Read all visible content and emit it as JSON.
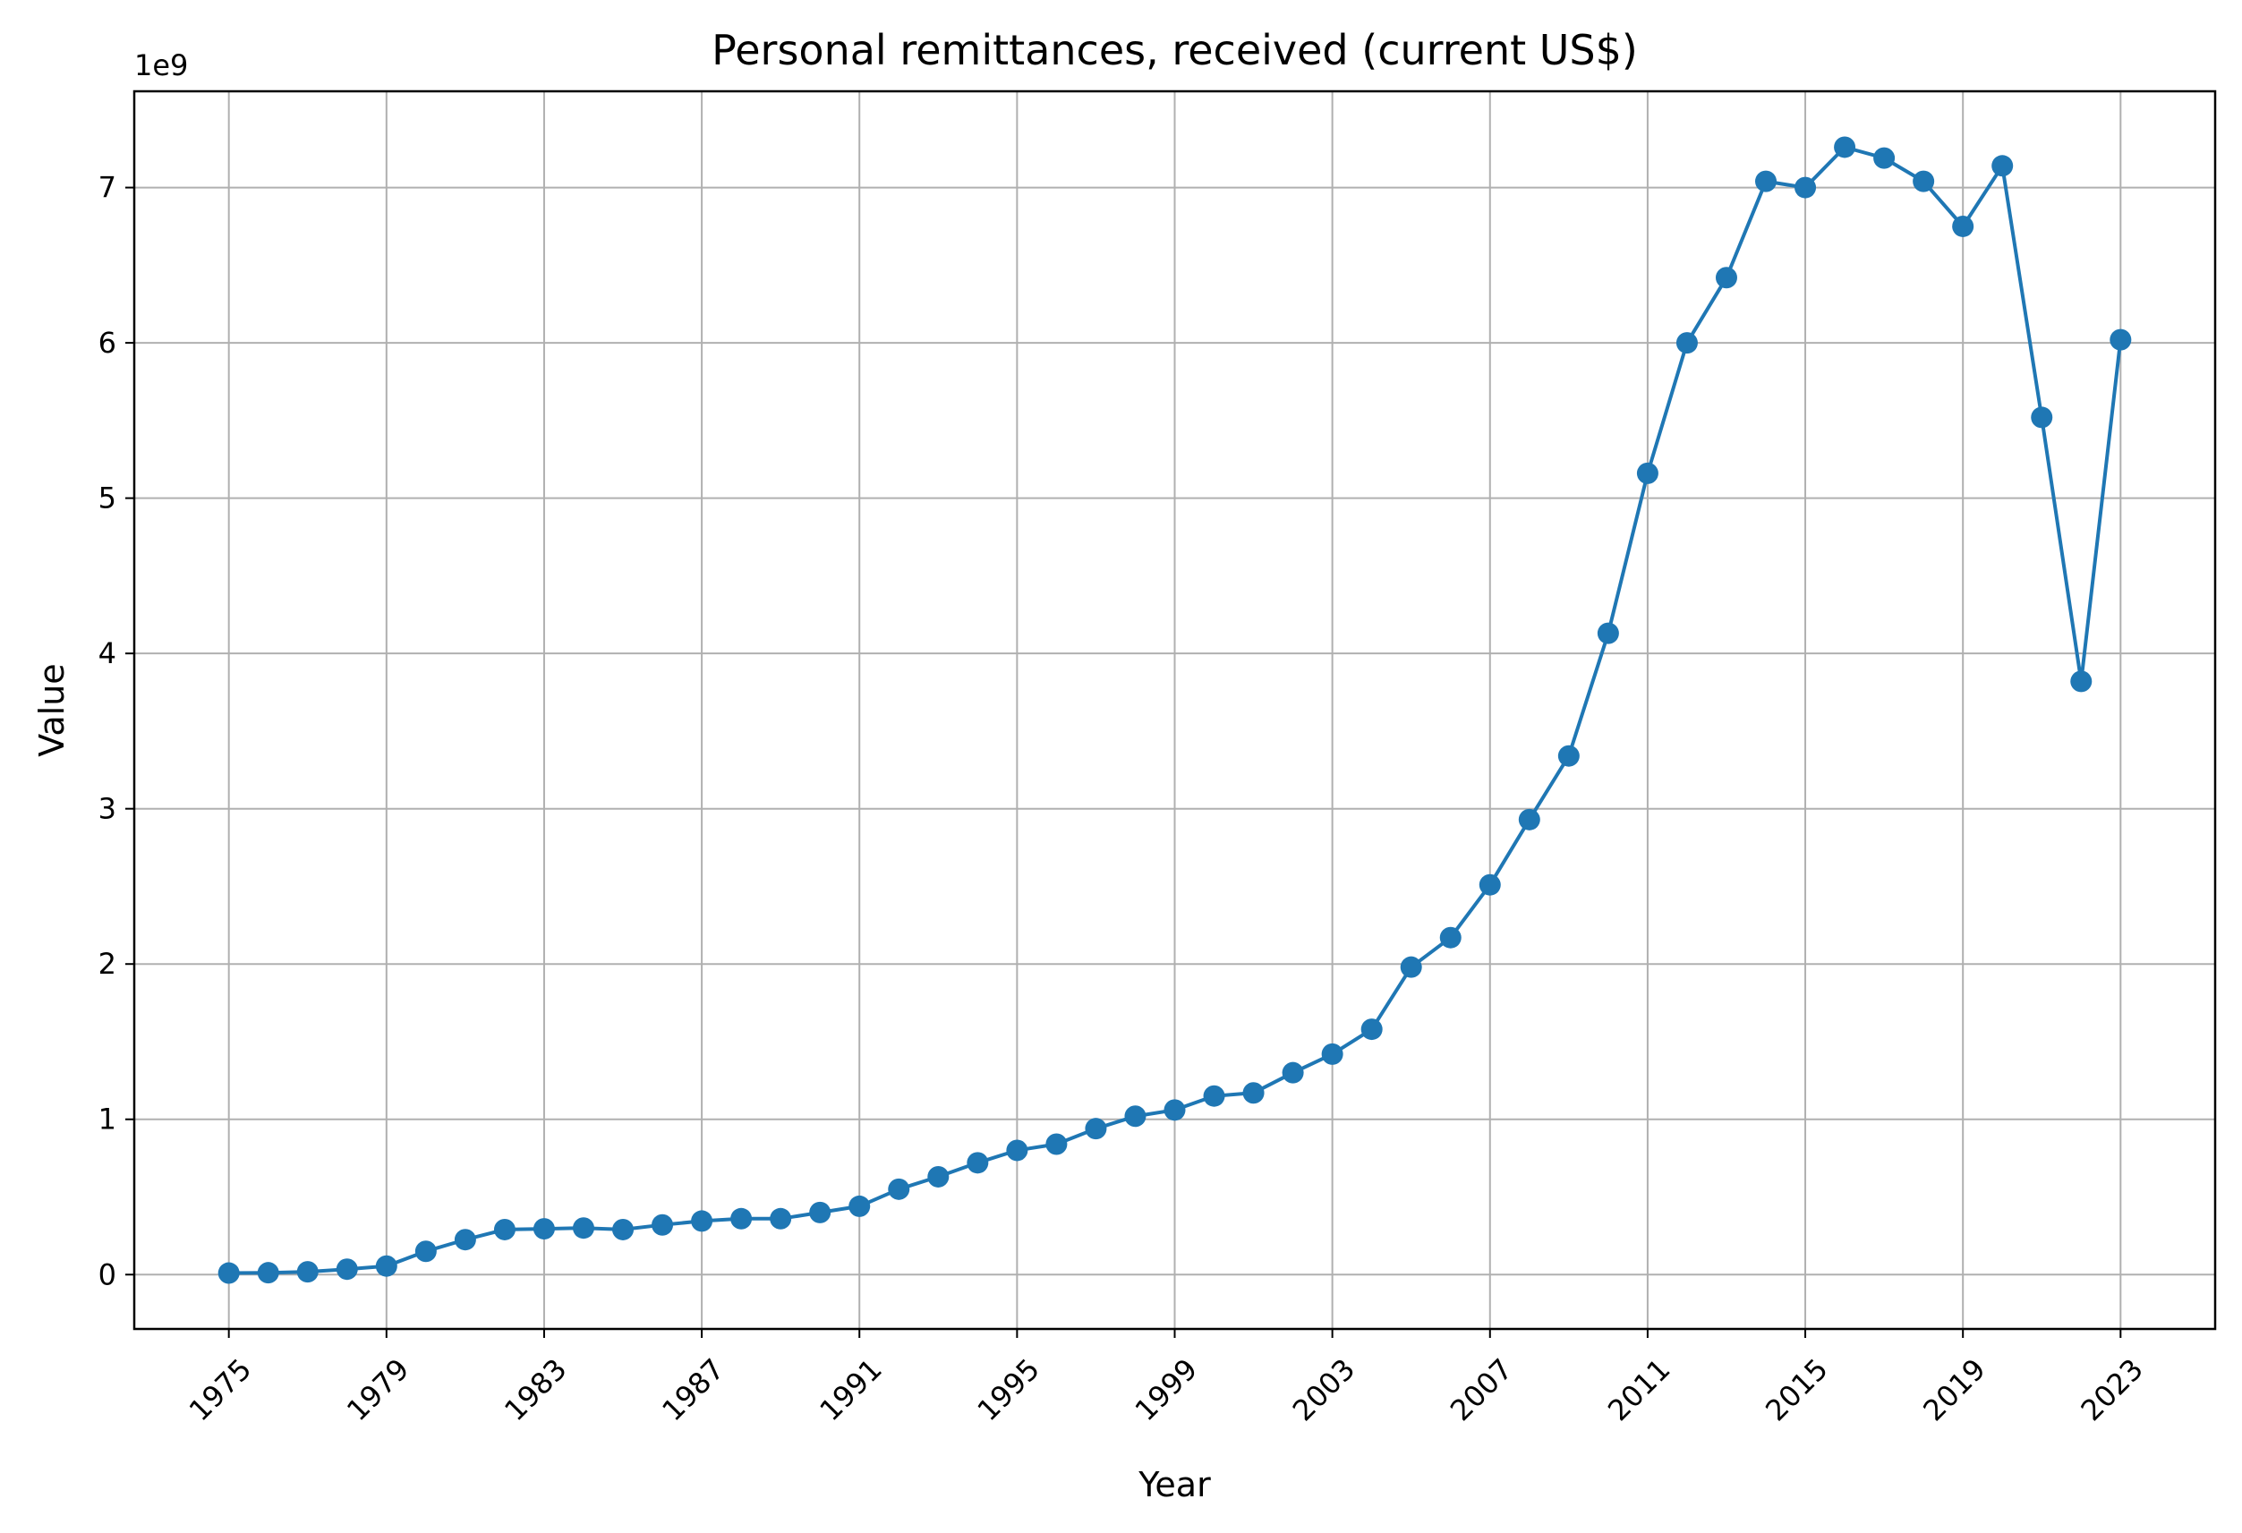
{
  "chart_data": {
    "type": "line",
    "title": "Personal remittances, received (current US$)",
    "xlabel": "Year",
    "ylabel": "Value",
    "y_offset_label": "1e9",
    "y_scale": 1000000000,
    "xlim": [
      1972.6,
      2025.4
    ],
    "ylim": [
      -350000000,
      7620000000
    ],
    "x_ticks": [
      1975,
      1979,
      1983,
      1987,
      1991,
      1995,
      1999,
      2003,
      2007,
      2011,
      2015,
      2019,
      2023
    ],
    "y_ticks": [
      0,
      1,
      2,
      3,
      4,
      5,
      6,
      7
    ],
    "grid": true,
    "color": "#1f77b4",
    "series": [
      {
        "x": [
          1975,
          1976,
          1977,
          1978,
          1979,
          1980,
          1981,
          1982,
          1983,
          1984,
          1985,
          1986,
          1987,
          1988,
          1989,
          1990,
          1991,
          1992,
          1993,
          1994,
          1995,
          1996,
          1997,
          1998,
          1999,
          2000,
          2001,
          2002,
          2003,
          2004,
          2005,
          2006,
          2007,
          2008,
          2009,
          2010,
          2011,
          2012,
          2013,
          2014,
          2015,
          2016,
          2017,
          2018,
          2019,
          2020,
          2021,
          2022,
          2023
        ],
        "values": [
          10000000,
          12000000,
          18000000,
          35000000,
          55000000,
          150000000,
          225000000,
          290000000,
          295000000,
          300000000,
          290000000,
          320000000,
          345000000,
          360000000,
          360000000,
          400000000,
          440000000,
          550000000,
          630000000,
          720000000,
          800000000,
          840000000,
          940000000,
          1020000000,
          1060000000,
          1150000000,
          1170000000,
          1300000000,
          1420000000,
          1580000000,
          1980000000,
          2170000000,
          2510000000,
          2930000000,
          3340000000,
          4130000000,
          5160000000,
          6000000000,
          6420000000,
          7040000000,
          7000000000,
          7260000000,
          7190000000,
          7040000000,
          6750000000,
          7140000000,
          5520000000,
          3820000000,
          6020000000
        ]
      }
    ]
  }
}
